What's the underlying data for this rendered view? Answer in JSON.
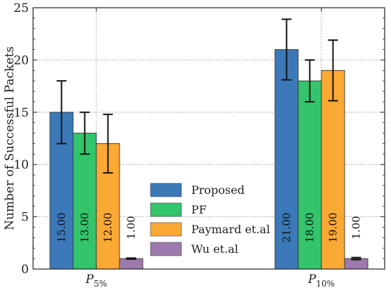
{
  "chart_data": {
    "type": "bar",
    "title": "",
    "xlabel": "",
    "ylabel": "Number of Successful Packets",
    "ylim": [
      0,
      25
    ],
    "yticks": [
      0,
      5,
      10,
      15,
      20,
      25
    ],
    "grid": true,
    "legend_position": "bottom-center",
    "categories": [
      {
        "base": "P",
        "sub": "5%"
      },
      {
        "base": "P",
        "sub": "10%"
      }
    ],
    "series": [
      {
        "name": "Proposed",
        "color": "#3c79b8",
        "values": [
          15.0,
          21.0
        ],
        "errors": [
          3.0,
          2.9
        ],
        "labels": [
          "15.00",
          "21.00"
        ]
      },
      {
        "name": "PF",
        "color": "#34c46b",
        "values": [
          13.0,
          18.0
        ],
        "errors": [
          2.0,
          2.0
        ],
        "labels": [
          "13.00",
          "18.00"
        ]
      },
      {
        "name": "Paymard et.al",
        "color": "#fba935",
        "values": [
          12.0,
          19.0
        ],
        "errors": [
          2.8,
          2.9
        ],
        "labels": [
          "12.00",
          "19.00"
        ]
      },
      {
        "name": "Wu et.al",
        "color": "#9d7aac",
        "values": [
          1.0,
          1.0
        ],
        "errors": [
          0.05,
          0.1
        ],
        "labels": [
          "1.00",
          "1.00"
        ]
      }
    ]
  }
}
